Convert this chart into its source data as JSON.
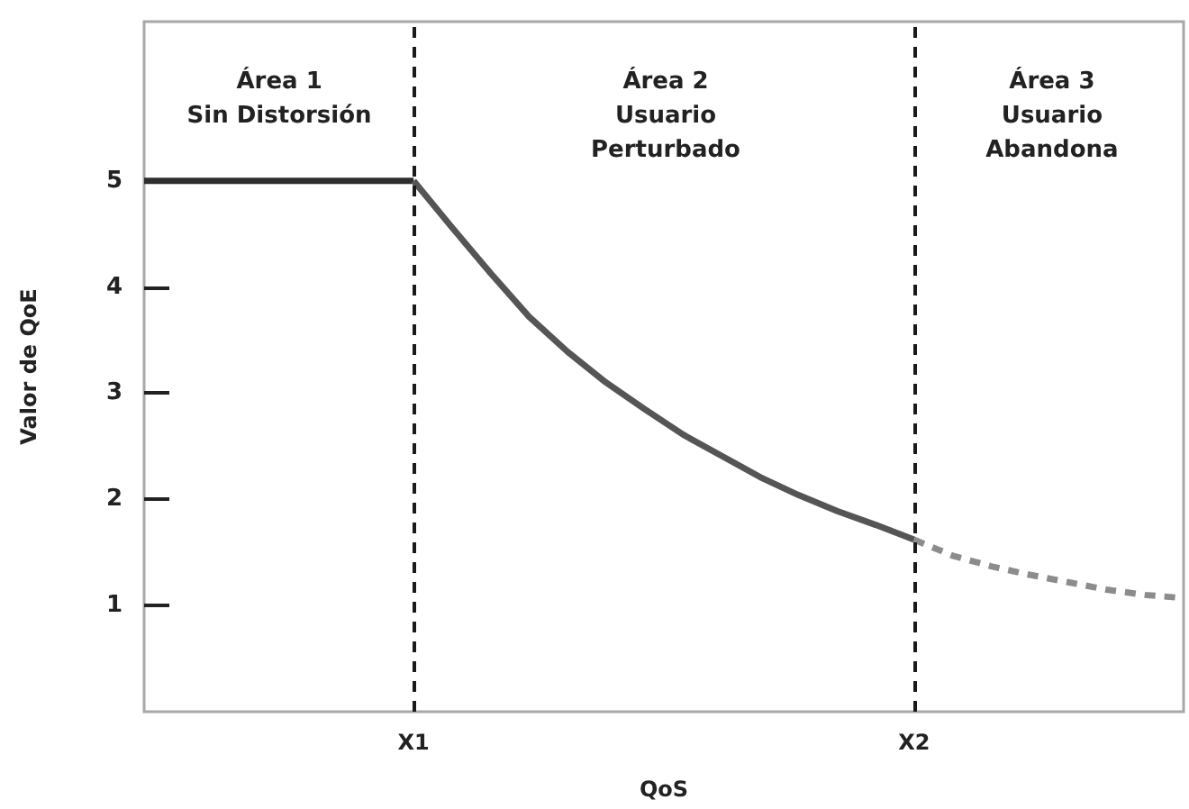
{
  "chart_data": {
    "type": "line",
    "xlabel": "QoS",
    "ylabel": "Valor de QoE",
    "categories": [
      null,
      null,
      null,
      null,
      null,
      null,
      null,
      "X1",
      null,
      null,
      null,
      null,
      null,
      null,
      null,
      null,
      null,
      null,
      null,
      null,
      "X2",
      null,
      null,
      null,
      null,
      null,
      null,
      null
    ],
    "ylim": [
      0,
      6.5
    ],
    "yticks": [
      1,
      2,
      3,
      4,
      5
    ],
    "series": [
      {
        "color": "#2e2e2e",
        "values": [
          5,
          5,
          5,
          5,
          5,
          5,
          5,
          5,
          null,
          null,
          null,
          null,
          null,
          null,
          null,
          null,
          null,
          null,
          null,
          null,
          null,
          null,
          null,
          null,
          null,
          null,
          null,
          null
        ],
        "line_style": "solid"
      },
      {
        "color": "#555555",
        "values": [
          null,
          null,
          null,
          null,
          null,
          null,
          null,
          5,
          4.56,
          4.13,
          3.72,
          3.39,
          3.1,
          2.85,
          2.61,
          2.41,
          2.21,
          2.04,
          1.89,
          1.76,
          1.62,
          null,
          null,
          null,
          null,
          null,
          null,
          null
        ],
        "line_style": "solid"
      },
      {
        "color": "#8c8c8c",
        "values": [
          null,
          null,
          null,
          null,
          null,
          null,
          null,
          null,
          null,
          null,
          null,
          null,
          null,
          null,
          null,
          null,
          null,
          null,
          null,
          null,
          1.62,
          1.47,
          1.37,
          1.29,
          1.22,
          1.15,
          1.1,
          1.07
        ],
        "line_style": "dashed"
      }
    ],
    "ref_lines": [
      {
        "axis": "x",
        "value": "X1",
        "color": "#1a1a1a",
        "line_style": "dashed"
      },
      {
        "axis": "x",
        "value": "X2",
        "color": "#1a1a1a",
        "line_style": "dashed"
      }
    ],
    "annotations": [
      "Área 1\nSin Distorsión",
      "Área 2\nUsuario\nPerturbado",
      "Área 3\nUsuario\nAbandona"
    ],
    "grid": false,
    "marker": "none"
  }
}
